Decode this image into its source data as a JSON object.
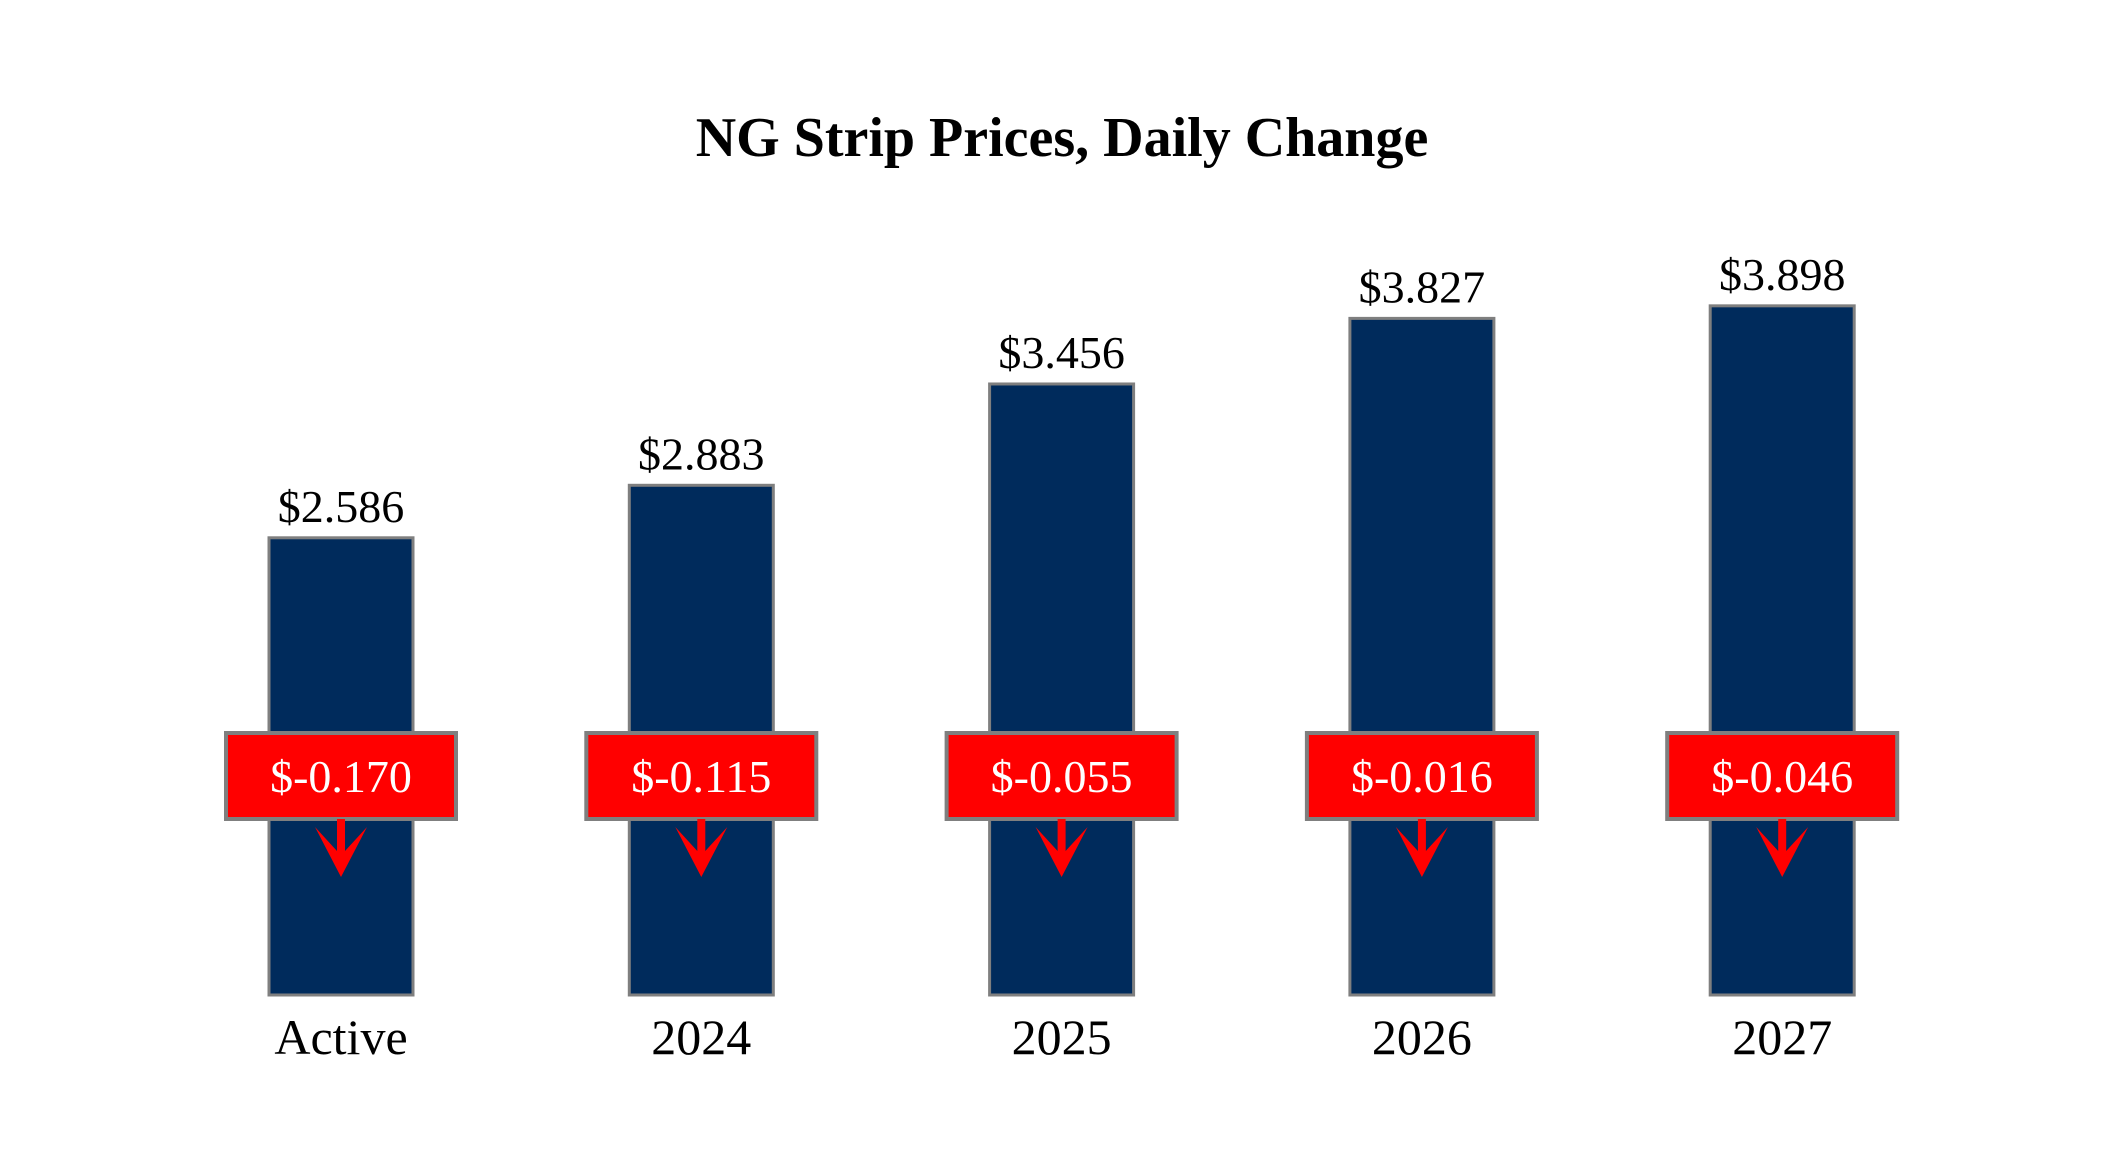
{
  "chart_data": {
    "type": "bar",
    "title": "NG Strip Prices, Daily Change",
    "categories": [
      "Active",
      "2024",
      "2025",
      "2026",
      "2027"
    ],
    "values": [
      2.586,
      2.883,
      3.456,
      3.827,
      3.898
    ],
    "value_labels": [
      "$2.586",
      "$2.883",
      "$3.456",
      "$3.827",
      "$3.898"
    ],
    "changes": [
      -0.17,
      -0.115,
      -0.055,
      -0.016,
      -0.046
    ],
    "change_labels": [
      "$-0.170",
      "$-0.115",
      "$-0.055",
      "$-0.016",
      "$-0.046"
    ],
    "change_direction_icon": "arrow-down-icon",
    "ylim": [
      0,
      4.5
    ],
    "grid": false,
    "colors": {
      "bar": "#002B5C",
      "bar_border": "#7F7F7F",
      "change_box": "#FF0000",
      "arrow": "#FF0000",
      "change_text": "#FFFFFF"
    }
  }
}
